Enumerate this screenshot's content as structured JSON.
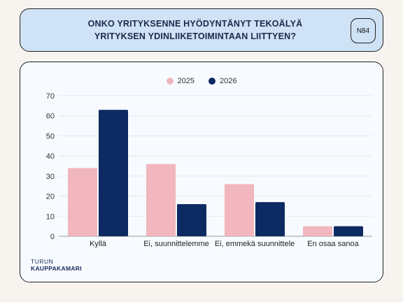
{
  "header": {
    "title_line1": "ONKO YRITYKSENNE HYÖDYNTÄNYT TEKOÄLYÄ",
    "title_line2": "YRITYKSEN YDINLIIKETOIMINTAAN LIITTYEN?",
    "n_label": "N84"
  },
  "logo": {
    "line1": "TURUN",
    "line2": "KAUPPAKAMARI"
  },
  "chart_data": {
    "type": "bar",
    "categories": [
      "Kyllä",
      "Ei, suunnittelemme",
      "Ei, emmekä suunnittele",
      "En osaa sanoa"
    ],
    "series": [
      {
        "name": "2025",
        "color": "#f2b6be",
        "values": [
          34,
          36,
          26,
          5
        ]
      },
      {
        "name": "2026",
        "color": "#0e2a63",
        "values": [
          63,
          16,
          17,
          5
        ]
      }
    ],
    "yticks": [
      0,
      10,
      20,
      30,
      40,
      50,
      60,
      70
    ],
    "ylim": [
      0,
      70
    ],
    "grid": true,
    "legend": "top-center"
  }
}
